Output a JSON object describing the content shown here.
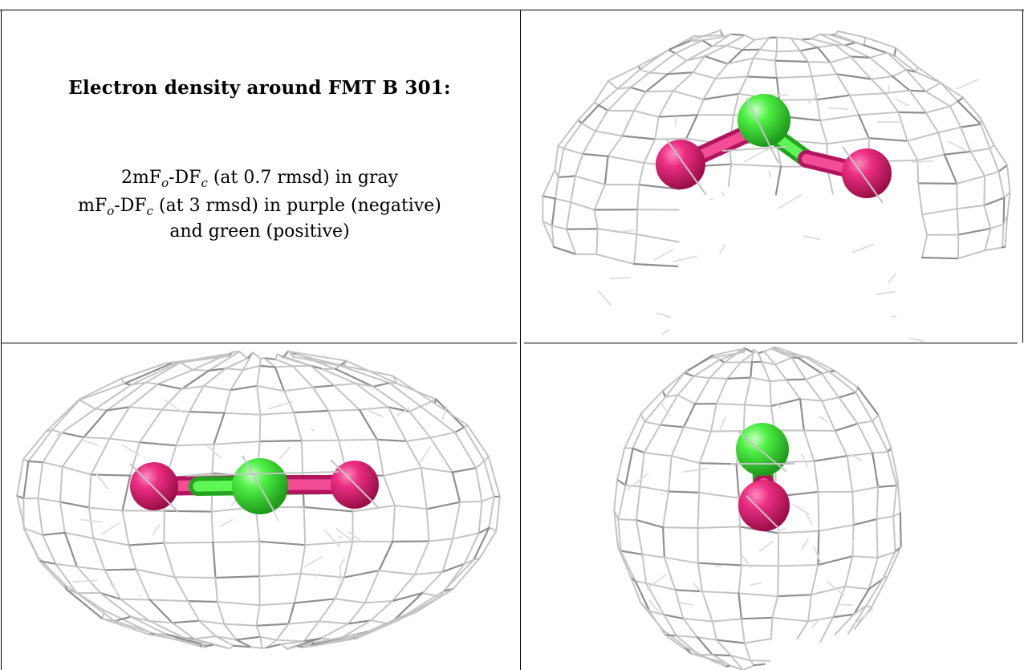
{
  "legend": {
    "title": "Electron density around FMT B 301:",
    "line1": {
      "lead": "2mF",
      "sub_o": "o",
      "mid": "-DF",
      "sub_c": "c",
      "tail": " (at 0.7 rmsd) in gray"
    },
    "line2": {
      "lead": "mF",
      "sub_o": "o",
      "mid": "-DF",
      "sub_c": "c",
      "tail": " (at 3 rmsd) in purple (negative)"
    },
    "line3": "and green (positive)"
  },
  "colors": {
    "mesh": "#c4c4c4",
    "mesh_dark": "#8e8e8e",
    "oxygen": "#e8287a",
    "carbon": "#3fe83a",
    "rule": "#000000"
  },
  "views": [
    {
      "name": "view-top-right",
      "molecule": "formate-bent"
    },
    {
      "name": "view-bottom-left",
      "molecule": "formate-side"
    },
    {
      "name": "view-bottom-right",
      "molecule": "formate-end-on"
    }
  ]
}
